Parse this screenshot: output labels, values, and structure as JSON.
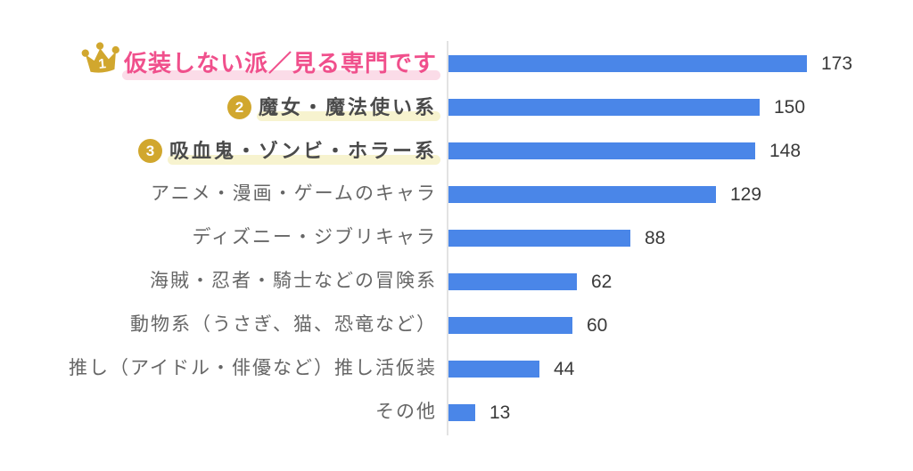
{
  "chart_data": {
    "type": "bar",
    "orientation": "horizontal",
    "title": "",
    "xlabel": "",
    "ylabel": "",
    "grid": false,
    "legend": null,
    "axis_baseline": "left vertical line at value 0",
    "value_range": [
      0,
      173
    ],
    "categories": [
      "仮装しない派／見る専門です",
      "魔女・魔法使い系",
      "吸血鬼・ゾンビ・ホラー系",
      "アニメ・漫画・ゲームのキャラ",
      "ディズニー・ジブリキャラ",
      "海賊・忍者・騎士などの冒険系",
      "動物系（うさぎ、猫、恐竜など）",
      "推し（アイドル・俳優など）推し活仮装",
      "その他"
    ],
    "values": [
      173,
      150,
      148,
      129,
      88,
      62,
      60,
      44,
      13
    ],
    "ranks": [
      {
        "index": 0,
        "rank": "1",
        "badge": "crown",
        "label_style": "pink-bold-highlight"
      },
      {
        "index": 1,
        "rank": "2",
        "badge": "circle",
        "label_style": "bold-yellow-highlight"
      },
      {
        "index": 2,
        "rank": "3",
        "badge": "circle",
        "label_style": "bold-yellow-highlight"
      }
    ]
  },
  "colors": {
    "bar": "#4a86e8",
    "axis": "#e3e3e3",
    "label": "#666666",
    "value": "#3a3a3a",
    "rank1_text": "#f0508c",
    "rank1_highlight": "#fbdce8",
    "rank23_text": "#4a4a4a",
    "rank23_highlight": "#f7f3cf",
    "gold": "#d1a72e",
    "badge_number": "#ffffff"
  }
}
